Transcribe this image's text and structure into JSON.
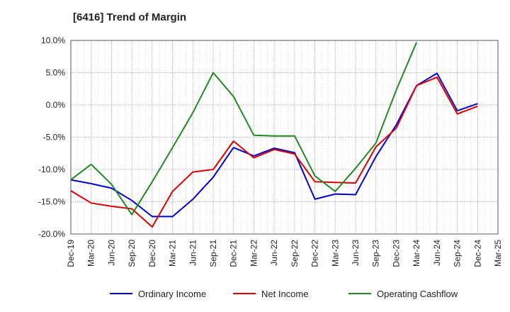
{
  "chart_data": {
    "type": "line",
    "title": "[6416]  Trend of Margin",
    "x_categories": [
      "Dec-19",
      "Mar-20",
      "Jun-20",
      "Sep-20",
      "Dec-20",
      "Mar-21",
      "Jun-21",
      "Sep-21",
      "Dec-21",
      "Mar-22",
      "Jun-22",
      "Sep-22",
      "Dec-22",
      "Mar-23",
      "Jun-23",
      "Sep-23",
      "Dec-23",
      "Mar-24",
      "Jun-24",
      "Sep-24",
      "Dec-24",
      "Mar-25"
    ],
    "ylim": [
      -20,
      10
    ],
    "yticks": [
      10,
      5,
      0,
      -5,
      -10,
      -15,
      -20
    ],
    "ytick_labels": [
      "10.0%",
      "5.0%",
      "0.0%",
      "-5.0%",
      "-10.0%",
      "-15.0%",
      "-20.0%"
    ],
    "grid": true,
    "legend_position": "bottom",
    "series": [
      {
        "name": "Ordinary Income",
        "color": "#0000cc",
        "values": [
          -11.6,
          -12.2,
          -12.9,
          -14.8,
          -17.3,
          -17.3,
          -14.6,
          -11.2,
          -6.6,
          -7.9,
          -6.7,
          -7.4,
          -14.6,
          -13.8,
          -13.9,
          -8.0,
          -3.1,
          3.0,
          4.9,
          -0.9,
          0.2,
          null
        ]
      },
      {
        "name": "Net Income",
        "color": "#dd0000",
        "values": [
          -13.3,
          -15.2,
          -15.7,
          -16.1,
          -18.9,
          -13.4,
          -10.4,
          -10.0,
          -5.6,
          -8.2,
          -6.9,
          -7.6,
          -11.9,
          -12.0,
          -12.1,
          -6.5,
          -3.6,
          3.0,
          4.3,
          -1.4,
          -0.2,
          null
        ]
      },
      {
        "name": "Operating Cashflow",
        "color": "#228822",
        "values": [
          -11.6,
          -9.2,
          -12.3,
          -17.0,
          -11.9,
          -6.6,
          -1.2,
          5.0,
          1.3,
          -4.7,
          -4.8,
          -4.8,
          -11.0,
          -13.4,
          -9.8,
          -5.9,
          2.3,
          9.7,
          null,
          null,
          null,
          null
        ]
      }
    ]
  }
}
